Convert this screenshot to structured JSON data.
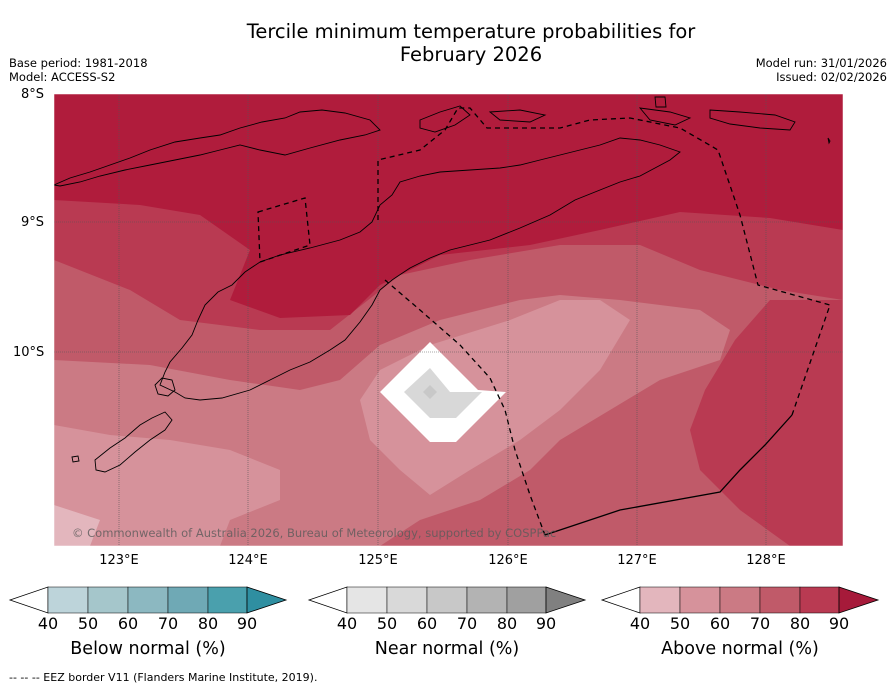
{
  "title": {
    "line1": "Tercile minimum temperature probabilities for",
    "line2": "February 2026"
  },
  "meta": {
    "base_period": "Base period: 1981-2018",
    "model": "Model: ACCESS-S2",
    "model_run": "Model run: 31/01/2026",
    "issued": "Issued: 02/02/2026"
  },
  "map": {
    "lat_labels": [
      "8°S",
      "9°S",
      "10°S"
    ],
    "lon_labels": [
      "123°E",
      "124°E",
      "125°E",
      "126°E",
      "127°E",
      "128°E"
    ],
    "copyright": "© Commonwealth of Australia 2026, Bureau of Meteorology, supported by COSPPac"
  },
  "colorbars": [
    {
      "label": "Below normal (%)",
      "ticks": [
        "40",
        "50",
        "60",
        "70",
        "80",
        "90"
      ],
      "colors": [
        "#bdd4da",
        "#a5c6cb",
        "#8cb8c1",
        "#6fa9b5",
        "#4aa0ad",
        "#2f8fa1"
      ]
    },
    {
      "label": "Near normal (%)",
      "ticks": [
        "40",
        "50",
        "60",
        "70",
        "80",
        "90"
      ],
      "colors": [
        "#e5e5e5",
        "#d9d9d9",
        "#c8c8c8",
        "#b3b3b3",
        "#a0a0a0",
        "#808080"
      ]
    },
    {
      "label": "Above normal (%)",
      "ticks": [
        "40",
        "50",
        "60",
        "70",
        "80",
        "90"
      ],
      "colors": [
        "#e3b6bd",
        "#d6929b",
        "#cb7a84",
        "#c05a69",
        "#b93a52",
        "#a61a3a"
      ]
    }
  ],
  "footer": "--  --  -- EEZ border V11 (Flanders Marine Institute, 2019)."
}
